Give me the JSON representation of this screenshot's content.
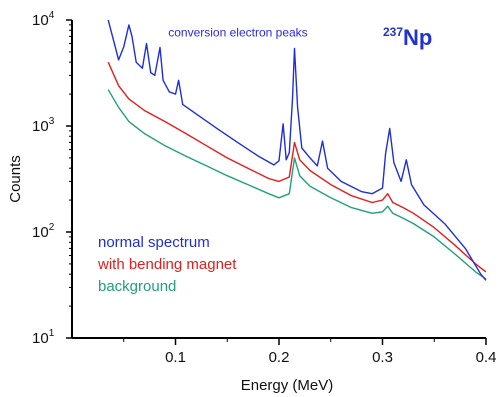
{
  "chart_data": {
    "type": "line",
    "title": "",
    "isotope": {
      "mass": "237",
      "symbol": "Np"
    },
    "xlabel": "Energy (MeV)",
    "ylabel": "Counts",
    "xlim": [
      0,
      0.4
    ],
    "ylim": [
      10,
      10000
    ],
    "yscale": "log",
    "grid": false,
    "legend": "lower-left",
    "x_ticks": [
      {
        "value": 0.1,
        "label": "0.1"
      },
      {
        "value": 0.2,
        "label": "0.2"
      },
      {
        "value": 0.3,
        "label": "0.3"
      },
      {
        "value": 0.4,
        "label": "0.4"
      }
    ],
    "y_ticks": [
      {
        "value": 10,
        "base": "10",
        "exp": "1"
      },
      {
        "value": 100,
        "base": "10",
        "exp": "2"
      },
      {
        "value": 1000,
        "base": "10",
        "exp": "3"
      },
      {
        "value": 10000,
        "base": "10",
        "exp": "4"
      }
    ],
    "annotations": [
      {
        "text": "conversion electron peaks",
        "x": 0.093,
        "y": 7000
      }
    ],
    "series": [
      {
        "name": "normal spectrum",
        "color": "#1f2fd6",
        "points": [
          [
            0.035,
            10000
          ],
          [
            0.04,
            6500
          ],
          [
            0.045,
            4200
          ],
          [
            0.05,
            5600
          ],
          [
            0.055,
            9000
          ],
          [
            0.058,
            7000
          ],
          [
            0.062,
            4000
          ],
          [
            0.068,
            3500
          ],
          [
            0.072,
            6000
          ],
          [
            0.076,
            3200
          ],
          [
            0.08,
            3000
          ],
          [
            0.085,
            5500
          ],
          [
            0.088,
            2700
          ],
          [
            0.094,
            2100
          ],
          [
            0.1,
            2000
          ],
          [
            0.103,
            2700
          ],
          [
            0.107,
            1600
          ],
          [
            0.12,
            1300
          ],
          [
            0.14,
            950
          ],
          [
            0.16,
            700
          ],
          [
            0.18,
            520
          ],
          [
            0.195,
            430
          ],
          [
            0.2,
            470
          ],
          [
            0.204,
            1050
          ],
          [
            0.207,
            480
          ],
          [
            0.21,
            560
          ],
          [
            0.213,
            1800
          ],
          [
            0.215,
            5400
          ],
          [
            0.218,
            1500
          ],
          [
            0.222,
            620
          ],
          [
            0.23,
            500
          ],
          [
            0.237,
            420
          ],
          [
            0.242,
            720
          ],
          [
            0.247,
            400
          ],
          [
            0.26,
            300
          ],
          [
            0.28,
            240
          ],
          [
            0.29,
            230
          ],
          [
            0.3,
            260
          ],
          [
            0.303,
            550
          ],
          [
            0.307,
            950
          ],
          [
            0.311,
            450
          ],
          [
            0.318,
            300
          ],
          [
            0.323,
            480
          ],
          [
            0.328,
            280
          ],
          [
            0.34,
            180
          ],
          [
            0.36,
            120
          ],
          [
            0.38,
            70
          ],
          [
            0.395,
            40
          ],
          [
            0.4,
            35
          ]
        ]
      },
      {
        "name": "with bending magnet",
        "color": "#e51c1c",
        "points": [
          [
            0.035,
            4000
          ],
          [
            0.045,
            2400
          ],
          [
            0.055,
            1800
          ],
          [
            0.07,
            1400
          ],
          [
            0.09,
            1100
          ],
          [
            0.11,
            850
          ],
          [
            0.13,
            650
          ],
          [
            0.15,
            500
          ],
          [
            0.17,
            400
          ],
          [
            0.19,
            320
          ],
          [
            0.2,
            300
          ],
          [
            0.21,
            330
          ],
          [
            0.215,
            700
          ],
          [
            0.22,
            480
          ],
          [
            0.23,
            380
          ],
          [
            0.25,
            280
          ],
          [
            0.27,
            220
          ],
          [
            0.29,
            190
          ],
          [
            0.3,
            200
          ],
          [
            0.305,
            230
          ],
          [
            0.31,
            190
          ],
          [
            0.32,
            170
          ],
          [
            0.33,
            150
          ],
          [
            0.35,
            110
          ],
          [
            0.37,
            75
          ],
          [
            0.39,
            50
          ],
          [
            0.4,
            42
          ]
        ]
      },
      {
        "name": "background",
        "color": "#21a07a",
        "points": [
          [
            0.035,
            2200
          ],
          [
            0.045,
            1500
          ],
          [
            0.055,
            1100
          ],
          [
            0.07,
            850
          ],
          [
            0.09,
            650
          ],
          [
            0.11,
            520
          ],
          [
            0.13,
            420
          ],
          [
            0.15,
            340
          ],
          [
            0.17,
            280
          ],
          [
            0.19,
            230
          ],
          [
            0.2,
            210
          ],
          [
            0.21,
            230
          ],
          [
            0.215,
            500
          ],
          [
            0.22,
            340
          ],
          [
            0.23,
            270
          ],
          [
            0.25,
            210
          ],
          [
            0.27,
            170
          ],
          [
            0.29,
            150
          ],
          [
            0.3,
            155
          ],
          [
            0.305,
            175
          ],
          [
            0.31,
            150
          ],
          [
            0.32,
            135
          ],
          [
            0.33,
            120
          ],
          [
            0.35,
            90
          ],
          [
            0.37,
            62
          ],
          [
            0.39,
            42
          ],
          [
            0.4,
            36
          ]
        ]
      }
    ]
  }
}
